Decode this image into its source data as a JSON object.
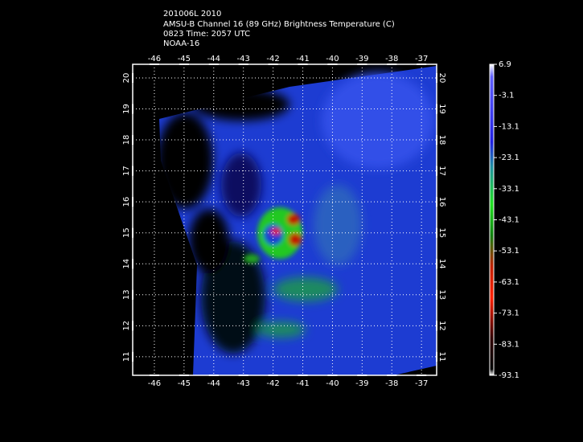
{
  "title_lines": [
    "201006L 2010",
    "AMSU-B Channel 16 (89 GHz) Brightness Temperature (C)",
    "0823 Time: 2057 UTC",
    "NOAA-16"
  ],
  "map": {
    "xlim": [
      -46.73,
      -36.49
    ],
    "ylim": [
      10.4,
      20.44
    ],
    "xticks": [
      -46,
      -45,
      -44,
      -43,
      -42,
      -41,
      -40,
      -39,
      -38,
      -37
    ],
    "yticks": [
      11,
      12,
      13,
      14,
      15,
      16,
      17,
      18,
      19,
      20
    ]
  },
  "colorbar": {
    "lim": [
      6.9,
      -93.1
    ],
    "ticks": [
      6.9,
      -3.1,
      -13.1,
      -23.1,
      -33.1,
      -43.1,
      -53.1,
      -63.1,
      -73.1,
      -83.1,
      -93.1
    ]
  }
}
